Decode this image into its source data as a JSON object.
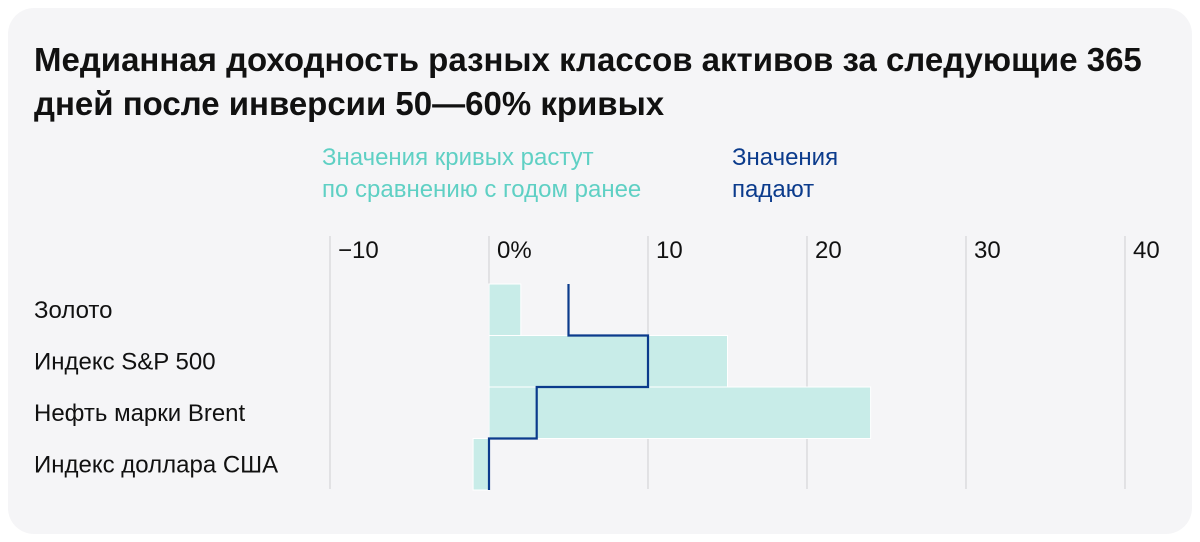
{
  "title": "Медианная доходность разных классов активов за следующие 365 дней после инверсии 50—60% кривых",
  "legend": {
    "rising": {
      "line1": "Значения кривых растут",
      "line2": "по сравнению с годом ранее",
      "color": "#5fd0c4"
    },
    "falling": {
      "line1": "Значения",
      "line2": "падают",
      "color": "#0b3b8c"
    }
  },
  "chart_data": {
    "type": "bar",
    "orientation": "horizontal",
    "categories": [
      "Золото",
      "Индекс S&P 500",
      "Нефть марки Brent",
      "Индекс доллара США"
    ],
    "series": [
      {
        "name": "Значения кривых растут по сравнению с годом ранее",
        "style": "filled-bar",
        "color": "#c8ece8",
        "values": [
          2,
          15,
          24,
          -1
        ]
      },
      {
        "name": "Значения падают",
        "style": "step-line",
        "color": "#0b3b8c",
        "values": [
          5,
          10,
          3,
          0
        ]
      }
    ],
    "x_ticks": [
      -10,
      0,
      10,
      20,
      30,
      40
    ],
    "x_tick_labels": [
      "−10",
      "0%",
      "10",
      "20",
      "30",
      "40"
    ],
    "xlim": [
      -10,
      40
    ],
    "grid": true,
    "legend_position": "top"
  }
}
